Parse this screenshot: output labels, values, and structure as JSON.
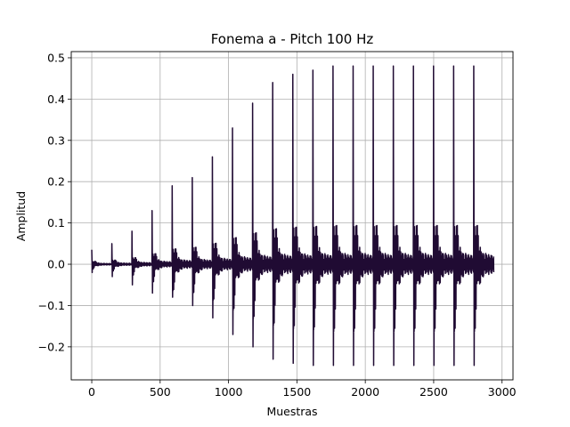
{
  "chart_data": {
    "type": "line",
    "title": "Fonema a - Pitch 100 Hz",
    "xlabel": "Muestras",
    "ylabel": "Amplitud",
    "xlim": [
      -150,
      3080
    ],
    "ylim": [
      -0.28,
      0.515
    ],
    "xticks": [
      0,
      500,
      1000,
      1500,
      2000,
      2500,
      3000
    ],
    "xtick_labels": [
      "0",
      "500",
      "1000",
      "1500",
      "2000",
      "2500",
      "3000"
    ],
    "yticks": [
      -0.2,
      -0.1,
      0.0,
      0.1,
      0.2,
      0.3,
      0.4,
      0.5
    ],
    "ytick_labels": [
      "−0.2",
      "−0.1",
      "0.0",
      "0.1",
      "0.2",
      "0.3",
      "0.4",
      "0.5"
    ],
    "grid": true,
    "line_color": "#200b33",
    "series": [
      {
        "name": "",
        "signal": {
          "n_samples": 2940,
          "period_samples": 147,
          "pulse_onsets": [
            0,
            147,
            294,
            441,
            588,
            735,
            882,
            1029,
            1176,
            1323,
            1470,
            1617,
            1764,
            1911,
            2058,
            2205,
            2352,
            2499,
            2646,
            2793
          ],
          "pulse_peaks": [
            0.035,
            0.05,
            0.08,
            0.13,
            0.19,
            0.21,
            0.26,
            0.33,
            0.39,
            0.44,
            0.46,
            0.47,
            0.48,
            0.48,
            0.48,
            0.48,
            0.48,
            0.48,
            0.48,
            0.48
          ],
          "pulse_troughs": [
            -0.02,
            -0.03,
            -0.05,
            -0.07,
            -0.08,
            -0.1,
            -0.13,
            -0.17,
            -0.2,
            -0.23,
            -0.24,
            -0.245,
            -0.245,
            -0.245,
            -0.245,
            -0.245,
            -0.245,
            -0.245,
            -0.245,
            -0.245
          ]
        }
      }
    ]
  }
}
